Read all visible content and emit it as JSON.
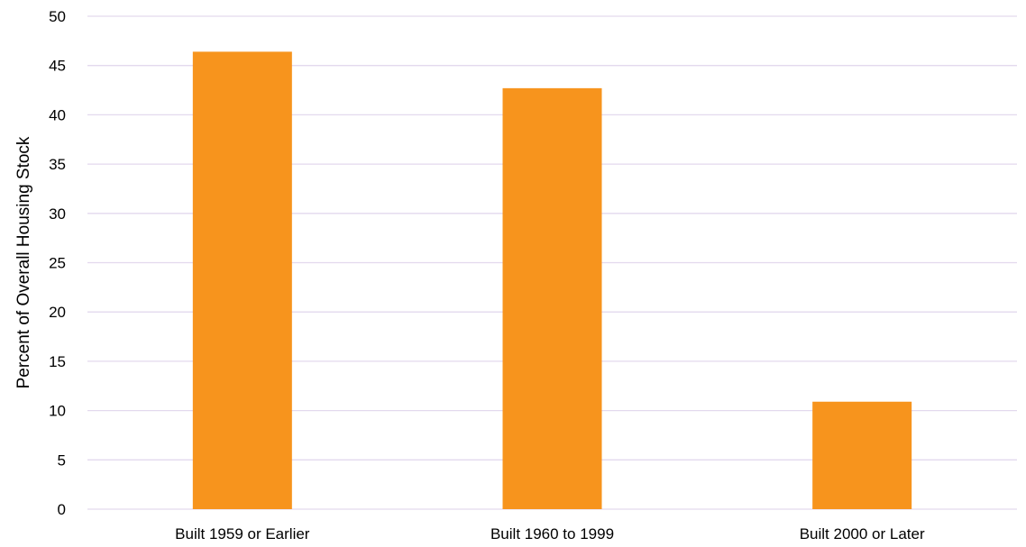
{
  "chart_data": {
    "type": "bar",
    "title": "",
    "xlabel": "",
    "ylabel": "Percent of Overall Housing Stock",
    "categories": [
      "Built 1959 or Earlier",
      "Built 1960 to 1999",
      "Built 2000 or Later"
    ],
    "values": [
      46.4,
      42.7,
      10.9
    ],
    "ylim": [
      0,
      50
    ],
    "yticks": [
      0,
      5,
      10,
      15,
      20,
      25,
      30,
      35,
      40,
      45,
      50
    ],
    "grid": true,
    "legend": "none",
    "colors": {
      "bar": "#F7941D",
      "grid": "#E3D9EE",
      "text": "#000000"
    }
  }
}
